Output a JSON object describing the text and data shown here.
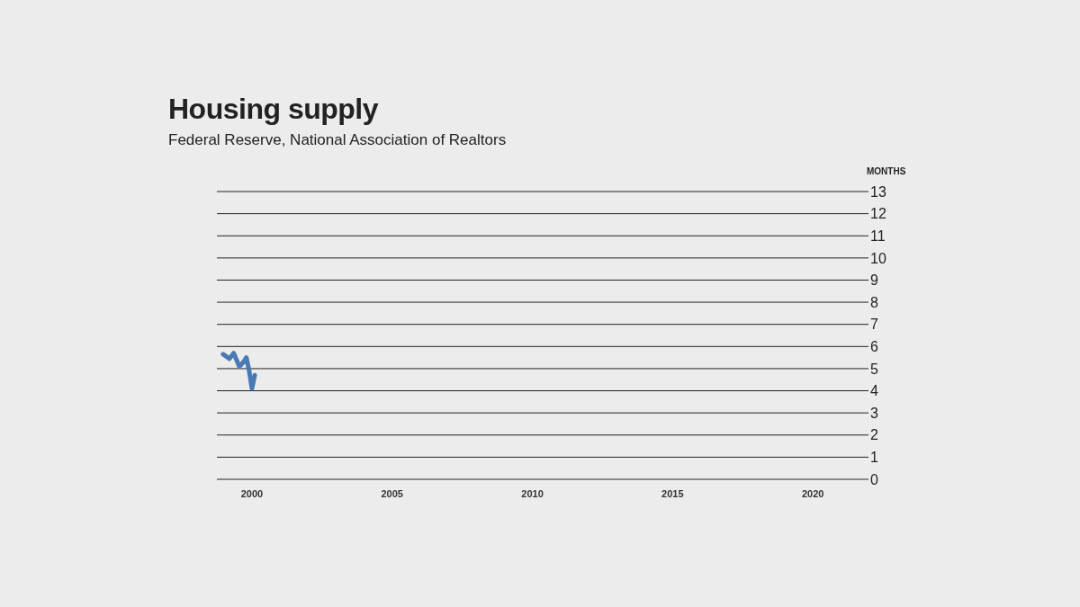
{
  "chart_data": {
    "type": "line",
    "title": "Housing supply",
    "subtitle": "Federal Reserve, National Association of Realtors",
    "ylabel": "MONTHS",
    "x": [
      1998.97,
      1999.2,
      1999.35,
      1999.55,
      1999.7,
      1999.8,
      1999.9,
      2000.0,
      2000.1
    ],
    "series": [
      {
        "color": "#4a7ab5",
        "values": [
          5.65,
          5.45,
          5.7,
          5.1,
          5.3,
          5.5,
          4.9,
          4.1,
          4.7
        ]
      }
    ],
    "xlim": [
      1998.75,
      2021.6
    ],
    "xticks": [
      2000,
      2005,
      2010,
      2015,
      2020
    ],
    "ylim": [
      0,
      13
    ],
    "yticks": [
      0,
      1,
      2,
      3,
      4,
      5,
      6,
      7,
      8,
      9,
      10,
      11,
      12,
      13
    ],
    "grid": "y",
    "legend": false,
    "marker": "none",
    "line_style": "solid"
  }
}
